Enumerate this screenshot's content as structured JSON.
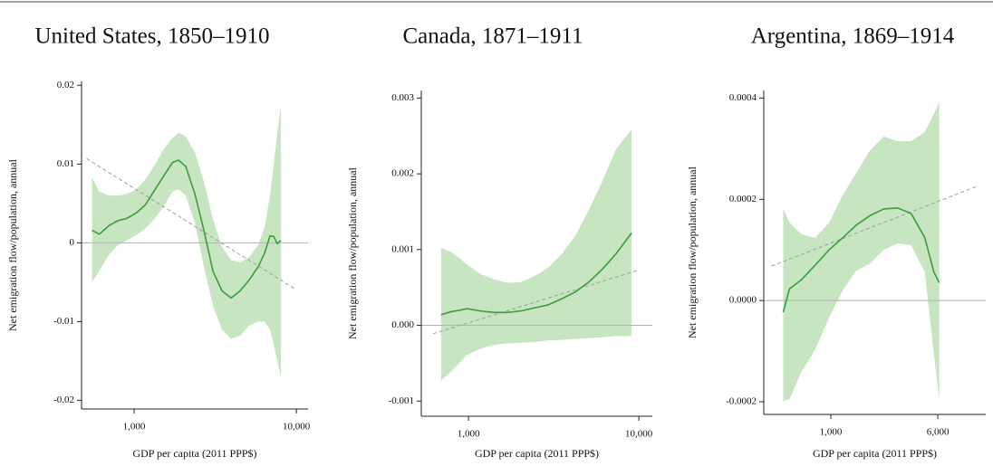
{
  "chart_data": [
    {
      "type": "line",
      "title": "United States, 1850–1910",
      "ylabel": "Net emigration flow/population, annual",
      "xlabel": "GDP per capita (2011 PPP$)",
      "xscale": "log",
      "xlim": [
        474,
        11800
      ],
      "ylim": [
        -0.0211,
        0.0205
      ],
      "xticks": [
        {
          "value": 1000,
          "label": "1,000"
        },
        {
          "value": 10000,
          "label": "10,000"
        }
      ],
      "yticks": [
        -0.02,
        -0.01,
        0,
        0.01,
        0.02
      ],
      "hline": 0,
      "color": "#3b9c3b",
      "band_color": "#c7e5c0",
      "trend_color": "#9a9a9a",
      "hline_color": "#b0b0b0",
      "x": [
        550,
        610,
        700,
        790,
        900,
        1030,
        1170,
        1330,
        1510,
        1720,
        1880,
        2080,
        2370,
        2690,
        3060,
        3480,
        3960,
        4500,
        5120,
        5830,
        6370,
        6880,
        7250,
        7630,
        8030
      ],
      "values": [
        0.0016,
        0.0011,
        0.0022,
        0.0028,
        0.0031,
        0.0038,
        0.0048,
        0.0066,
        0.0084,
        0.0102,
        0.0105,
        0.0097,
        0.0062,
        0.0016,
        -0.0036,
        -0.0061,
        -0.007,
        -0.0061,
        -0.0047,
        -0.003,
        -0.0013,
        0.0009,
        0.0008,
        -0.0001,
        0.0003
      ],
      "band_upper": [
        0.0083,
        0.0065,
        0.006,
        0.006,
        0.0062,
        0.0068,
        0.008,
        0.0098,
        0.0118,
        0.0133,
        0.014,
        0.0135,
        0.0115,
        0.0078,
        0.003,
        -0.0005,
        -0.0022,
        -0.0025,
        -0.0018,
        -0.0002,
        0.002,
        0.006,
        0.01,
        0.014,
        0.0175
      ],
      "band_lower": [
        -0.005,
        -0.0035,
        -0.0015,
        -0.0003,
        0.0003,
        0.001,
        0.0018,
        0.003,
        0.0045,
        0.0065,
        0.0068,
        0.006,
        0.0025,
        -0.003,
        -0.008,
        -0.011,
        -0.0122,
        -0.0118,
        -0.0105,
        -0.01,
        -0.01,
        -0.011,
        -0.013,
        -0.015,
        -0.017
      ],
      "trend": {
        "x": [
          510,
          9870
        ],
        "values": [
          0.0107,
          -0.0059
        ]
      }
    },
    {
      "type": "line",
      "title": "Canada, 1871–1911",
      "ylabel": "Net emigration flow/population, annual",
      "xlabel": "GDP per capita (2011 PPP$)",
      "xscale": "log",
      "xlim": [
        528,
        12000
      ],
      "ylim": [
        -0.0012,
        0.0031
      ],
      "xticks": [
        {
          "value": 1000,
          "label": "1,000"
        },
        {
          "value": 10000,
          "label": "10,000"
        }
      ],
      "yticks": [
        -0.001,
        {
          "value": 0,
          "label": "0.000"
        },
        0.001,
        0.002,
        0.003
      ],
      "hline": 0,
      "color": "#3b9c3b",
      "band_color": "#c7e5c0",
      "trend_color": "#9a9a9a",
      "hline_color": "#b0b0b0",
      "x": [
        690,
        790,
        890,
        980,
        1170,
        1410,
        1690,
        2030,
        2440,
        2930,
        3520,
        4230,
        5080,
        6100,
        7320,
        9070
      ],
      "values": [
        0.00014,
        0.00018,
        0.0002,
        0.00022,
        0.00019,
        0.00017,
        0.00017,
        0.00019,
        0.00023,
        0.00027,
        0.00035,
        0.00044,
        0.00057,
        0.00074,
        0.00094,
        0.00122
      ],
      "band_upper": [
        0.00102,
        0.00097,
        0.00088,
        0.0008,
        0.00068,
        0.00061,
        0.00056,
        0.00057,
        0.00065,
        0.00076,
        0.00094,
        0.00118,
        0.00152,
        0.0019,
        0.00232,
        0.00259
      ],
      "band_lower": [
        -0.00073,
        -0.00061,
        -0.00049,
        -0.00039,
        -0.00031,
        -0.00026,
        -0.00024,
        -0.00023,
        -0.00022,
        -0.0002,
        -0.00019,
        -0.00018,
        -0.00017,
        -0.00016,
        -0.00014,
        -0.00014
      ],
      "trend": {
        "x": [
          620,
          10000
        ],
        "values": [
          -0.00011,
          0.00073
        ]
      }
    },
    {
      "type": "line",
      "title": "Argentina, 1869–1914",
      "ylabel": "Net emigration flow/population, annual",
      "xlabel": "GDP per capita (2011 PPP$)",
      "xscale": "log",
      "xlim": [
        325,
        13400
      ],
      "ylim": [
        -0.000225,
        0.000415
      ],
      "xticks": [
        {
          "value": 1000,
          "label": "1,000"
        },
        {
          "value": 6000,
          "label": "6,000"
        }
      ],
      "yticks": [
        -0.0002,
        {
          "value": 0,
          "label": "0.0000"
        },
        0.0002,
        0.0004
      ],
      "hline": 0,
      "color": "#3b9c3b",
      "band_color": "#c7e5c0",
      "trend_color": "#9a9a9a",
      "hline_color": "#b0b0b0",
      "x": [
        450,
        500,
        610,
        770,
        970,
        1220,
        1530,
        1930,
        2430,
        3050,
        3840,
        4830,
        5620,
        6150
      ],
      "values": [
        -2.3e-05,
        2.3e-05,
        4.1e-05,
        7e-05,
        0.0001,
        0.000124,
        0.000149,
        0.000168,
        0.000181,
        0.000183,
        0.000172,
        0.000124,
        5.6e-05,
        3.5e-05
      ],
      "band_upper": [
        0.000181,
        0.000154,
        0.000131,
        0.000124,
        0.000154,
        0.000208,
        0.000252,
        0.000297,
        0.000324,
        0.000315,
        0.000315,
        0.000333,
        0.000369,
        0.000392
      ],
      "band_lower": [
        -0.000199,
        -0.000195,
        -0.000141,
        -9.7e-05,
        -3.4e-05,
        2e-05,
        5.9e-05,
        7.3e-05,
        0.0001,
        0.000113,
        0.000109,
        5.6e-05,
        -0.000106,
        -0.000195
      ],
      "trend": {
        "x": [
          370,
          11900
        ],
        "values": [
          6.8e-05,
          0.000227
        ]
      }
    }
  ]
}
